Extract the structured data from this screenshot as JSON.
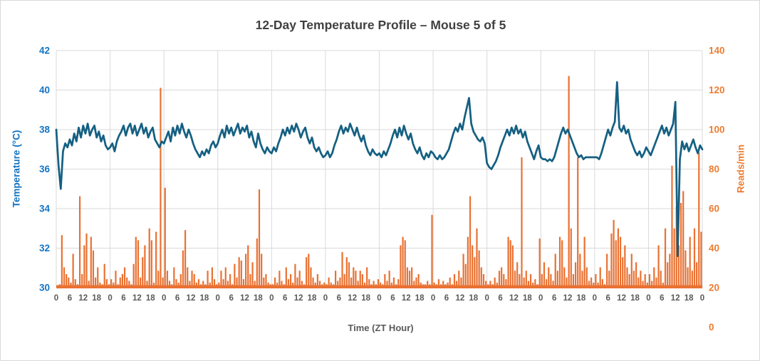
{
  "chart_data": {
    "type": "combo",
    "title": "12-Day Temperature Profile – Mouse 5 of 5",
    "grid": true,
    "legend": false,
    "x_axis": {
      "label": "Time (ZT Hour)",
      "range_hours": [
        0,
        288
      ],
      "tick_interval_hours": 6,
      "day_gridline_interval_hours": 24,
      "tick_labels": [
        "0",
        "6",
        "12",
        "18",
        "0",
        "6",
        "12",
        "18",
        "0",
        "6",
        "12",
        "18",
        "0",
        "6",
        "12",
        "18",
        "0",
        "6",
        "12",
        "18",
        "0",
        "6",
        "12",
        "18",
        "0",
        "6",
        "12",
        "18",
        "0",
        "6",
        "12",
        "18",
        "0",
        "6",
        "12",
        "18",
        "0",
        "6",
        "12",
        "18",
        "0",
        "6",
        "12",
        "18",
        "0",
        "6",
        "12",
        "18",
        "0"
      ],
      "tick_color": "#595959"
    },
    "y_left": {
      "label": "Temperature (°C)",
      "min": 30,
      "max": 42,
      "tick_step": 2,
      "tick_labels": [
        "42",
        "40",
        "38",
        "36",
        "34",
        "32",
        "30"
      ],
      "color": "#1273c4"
    },
    "y_right": {
      "label": "Reads/min",
      "min": 0,
      "max": 140,
      "tick_step": 20,
      "tick_labels": [
        "140",
        "120",
        "100",
        "80",
        "60",
        "40",
        "20",
        "0"
      ],
      "color": "#ed7d31"
    },
    "colors": {
      "temperature_line": "#156082",
      "reads_bars": "#e97132",
      "gridline": "#d9d9d9",
      "title_text": "#404040"
    },
    "series": [
      {
        "name": "Temperature",
        "type": "line",
        "axis": "left",
        "sample_interval_hours": 1,
        "values": [
          38.0,
          36.2,
          35.0,
          36.9,
          37.3,
          37.1,
          37.5,
          37.2,
          37.8,
          37.4,
          38.1,
          37.6,
          38.2,
          37.8,
          38.3,
          37.7,
          38.0,
          38.2,
          37.6,
          37.9,
          37.4,
          37.7,
          37.2,
          37.0,
          37.1,
          37.3,
          36.9,
          37.4,
          37.7,
          37.9,
          38.2,
          37.7,
          38.1,
          38.3,
          37.8,
          38.2,
          37.7,
          38.0,
          38.3,
          37.8,
          38.1,
          37.6,
          37.9,
          38.1,
          37.5,
          37.3,
          37.1,
          37.4,
          37.3,
          37.6,
          37.9,
          37.4,
          38.1,
          37.7,
          38.2,
          37.8,
          38.3,
          37.9,
          37.6,
          38.0,
          37.7,
          37.3,
          37.0,
          36.8,
          36.6,
          36.9,
          36.7,
          37.0,
          36.8,
          37.2,
          37.4,
          37.1,
          37.3,
          37.7,
          38.0,
          37.6,
          38.2,
          37.8,
          38.1,
          37.7,
          38.0,
          38.3,
          37.8,
          38.1,
          37.9,
          38.2,
          37.6,
          37.9,
          37.4,
          37.1,
          37.8,
          37.3,
          37.0,
          36.8,
          37.1,
          36.9,
          36.8,
          37.1,
          36.9,
          37.3,
          37.6,
          38.0,
          37.7,
          38.1,
          37.8,
          38.2,
          37.9,
          38.3,
          38.0,
          37.6,
          37.9,
          38.1,
          37.6,
          37.3,
          37.6,
          37.1,
          36.9,
          37.1,
          36.8,
          36.6,
          36.7,
          36.9,
          36.6,
          36.8,
          37.2,
          37.5,
          37.9,
          38.2,
          37.8,
          38.1,
          37.9,
          38.3,
          38.0,
          37.7,
          38.1,
          37.7,
          37.4,
          37.7,
          37.2,
          36.9,
          36.7,
          37.0,
          36.8,
          36.7,
          36.8,
          36.6,
          36.9,
          36.7,
          37.0,
          37.3,
          37.7,
          38.0,
          37.6,
          38.1,
          37.7,
          38.2,
          37.8,
          37.5,
          37.8,
          37.3,
          37.0,
          36.8,
          37.1,
          36.7,
          36.5,
          36.8,
          36.6,
          36.9,
          36.8,
          36.6,
          36.5,
          36.7,
          36.5,
          36.6,
          36.8,
          37.0,
          37.4,
          37.8,
          38.1,
          37.9,
          38.3,
          38.0,
          38.6,
          39.1,
          39.6,
          38.3,
          37.9,
          37.7,
          37.5,
          37.4,
          37.6,
          37.3,
          36.3,
          36.1,
          36.0,
          36.2,
          36.4,
          36.7,
          37.1,
          37.4,
          37.7,
          38.0,
          37.7,
          38.1,
          37.8,
          38.2,
          37.8,
          38.0,
          37.6,
          37.9,
          37.4,
          37.1,
          36.8,
          36.5,
          36.9,
          37.2,
          36.6,
          36.5,
          36.5,
          36.4,
          36.5,
          36.4,
          36.6,
          37.0,
          37.4,
          37.8,
          38.1,
          37.8,
          38.0,
          37.7,
          37.4,
          37.1,
          36.8,
          36.6,
          36.7,
          36.5,
          36.6,
          36.6,
          36.6,
          36.6,
          36.6,
          36.6,
          36.5,
          36.8,
          37.2,
          37.6,
          38.0,
          37.7,
          38.1,
          38.4,
          40.4,
          38.1,
          37.9,
          38.2,
          37.8,
          38.0,
          37.5,
          37.2,
          36.9,
          36.7,
          36.9,
          36.6,
          36.8,
          37.1,
          36.9,
          36.7,
          37.0,
          37.3,
          37.6,
          37.9,
          38.2,
          37.8,
          38.1,
          37.7,
          38.0,
          38.3,
          39.4,
          31.6,
          36.5,
          37.4,
          37.0,
          37.3,
          36.9,
          37.2,
          37.5,
          37.1,
          36.8,
          37.2,
          37.0
        ]
      },
      {
        "name": "Reads",
        "type": "bar",
        "axis": "right",
        "sample_interval_hours": 1,
        "values": [
          1,
          2,
          31,
          12,
          8,
          6,
          3,
          20,
          5,
          2,
          54,
          8,
          25,
          32,
          4,
          30,
          22,
          6,
          12,
          3,
          2,
          14,
          5,
          2,
          5,
          3,
          10,
          2,
          6,
          8,
          12,
          6,
          4,
          2,
          14,
          30,
          28,
          6,
          18,
          25,
          4,
          35,
          28,
          3,
          33,
          10,
          118,
          6,
          59,
          10,
          4,
          2,
          12,
          5,
          3,
          8,
          22,
          34,
          12,
          4,
          10,
          8,
          3,
          5,
          2,
          4,
          2,
          10,
          3,
          12,
          5,
          2,
          3,
          10,
          5,
          12,
          4,
          8,
          2,
          14,
          6,
          18,
          16,
          5,
          20,
          25,
          8,
          15,
          4,
          29,
          58,
          20,
          6,
          8,
          3,
          2,
          2,
          6,
          3,
          10,
          4,
          2,
          12,
          5,
          8,
          3,
          14,
          6,
          10,
          4,
          2,
          18,
          20,
          12,
          6,
          3,
          8,
          4,
          2,
          3,
          2,
          6,
          3,
          2,
          10,
          4,
          6,
          21,
          8,
          18,
          15,
          6,
          12,
          10,
          4,
          10,
          8,
          3,
          12,
          5,
          2,
          4,
          2,
          5,
          3,
          2,
          8,
          4,
          10,
          3,
          6,
          2,
          5,
          25,
          30,
          28,
          12,
          10,
          12,
          4,
          6,
          8,
          3,
          2,
          2,
          4,
          2,
          43,
          3,
          2,
          5,
          2,
          4,
          2,
          3,
          6,
          2,
          8,
          4,
          10,
          6,
          20,
          14,
          30,
          54,
          25,
          18,
          35,
          22,
          12,
          8,
          4,
          2,
          4,
          2,
          6,
          3,
          10,
          12,
          8,
          5,
          30,
          28,
          25,
          10,
          15,
          8,
          77,
          6,
          10,
          4,
          8,
          3,
          5,
          2,
          29,
          8,
          15,
          5,
          12,
          8,
          4,
          20,
          10,
          30,
          28,
          12,
          6,
          125,
          35,
          8,
          15,
          77,
          20,
          10,
          30,
          12,
          4,
          6,
          3,
          8,
          3,
          12,
          5,
          2,
          20,
          10,
          32,
          40,
          28,
          35,
          30,
          18,
          25,
          12,
          8,
          20,
          10,
          15,
          6,
          10,
          4,
          8,
          3,
          8,
          4,
          12,
          6,
          25,
          10,
          3,
          35,
          15,
          20,
          72,
          35,
          48,
          25,
          50,
          57,
          22,
          12,
          30,
          10,
          35,
          15,
          80,
          33
        ]
      }
    ]
  }
}
